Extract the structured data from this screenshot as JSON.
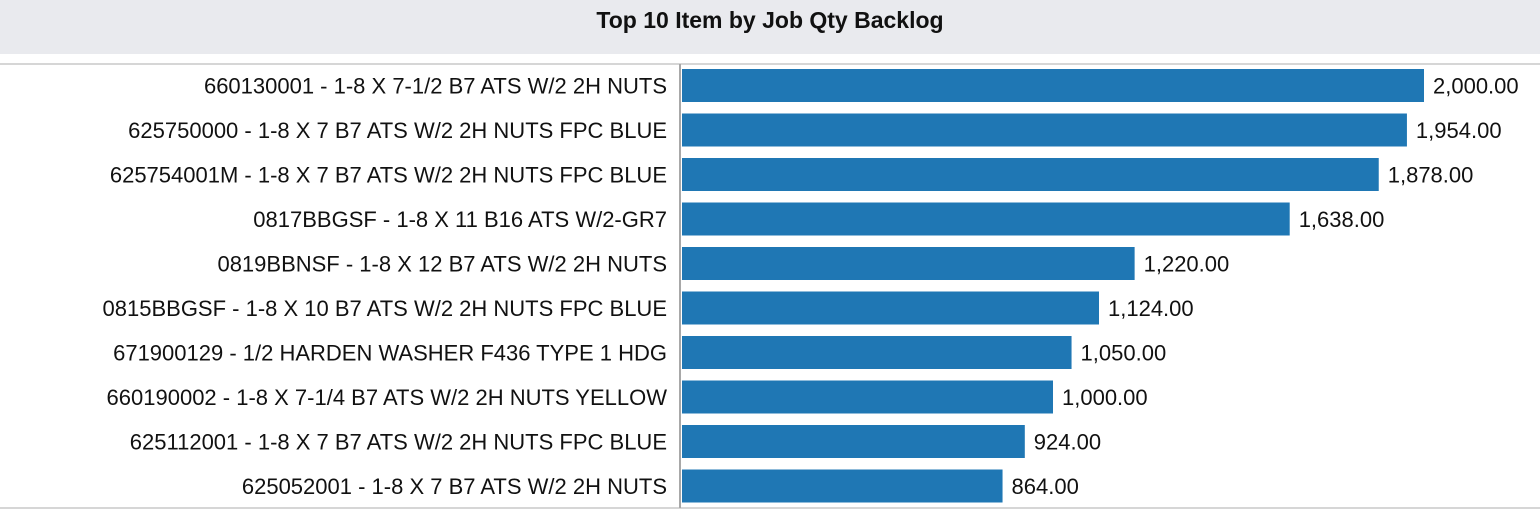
{
  "chart_data": {
    "type": "bar",
    "orientation": "horizontal",
    "title": "Top 10 Item by Job Qty Backlog",
    "xlabel": "",
    "ylabel": "",
    "categories": [
      "660130001 - 1-8 X 7-1/2 B7 ATS W/2 2H NUTS",
      "625750000 - 1-8 X 7 B7 ATS W/2 2H NUTS FPC BLUE",
      "625754001M - 1-8 X 7 B7 ATS W/2 2H NUTS FPC BLUE",
      "0817BBGSF - 1-8 X 11 B16 ATS W/2-GR7",
      "0819BBNSF - 1-8 X 12 B7 ATS W/2 2H NUTS",
      "0815BBGSF - 1-8 X 10 B7 ATS W/2 2H NUTS FPC BLUE",
      "671900129 - 1/2 HARDEN WASHER F436 TYPE 1 HDG",
      "660190002 - 1-8 X 7-1/4 B7 ATS W/2 2H NUTS YELLOW",
      "625112001 - 1-8 X 7 B7 ATS W/2 2H NUTS FPC BLUE",
      "625052001 - 1-8 X 7 B7 ATS W/2 2H NUTS"
    ],
    "values": [
      2000,
      1954,
      1878,
      1638,
      1220,
      1124,
      1050,
      1000,
      924,
      864
    ],
    "value_labels": [
      "2,000.00",
      "1,954.00",
      "1,878.00",
      "1,638.00",
      "1,220.00",
      "1,124.00",
      "1,050.00",
      "1,000.00",
      "924.00",
      "864.00"
    ],
    "xlim": [
      0,
      2000
    ],
    "grid": false,
    "bar_color": "#1f77b4",
    "header_background": "#e9eaee"
  }
}
